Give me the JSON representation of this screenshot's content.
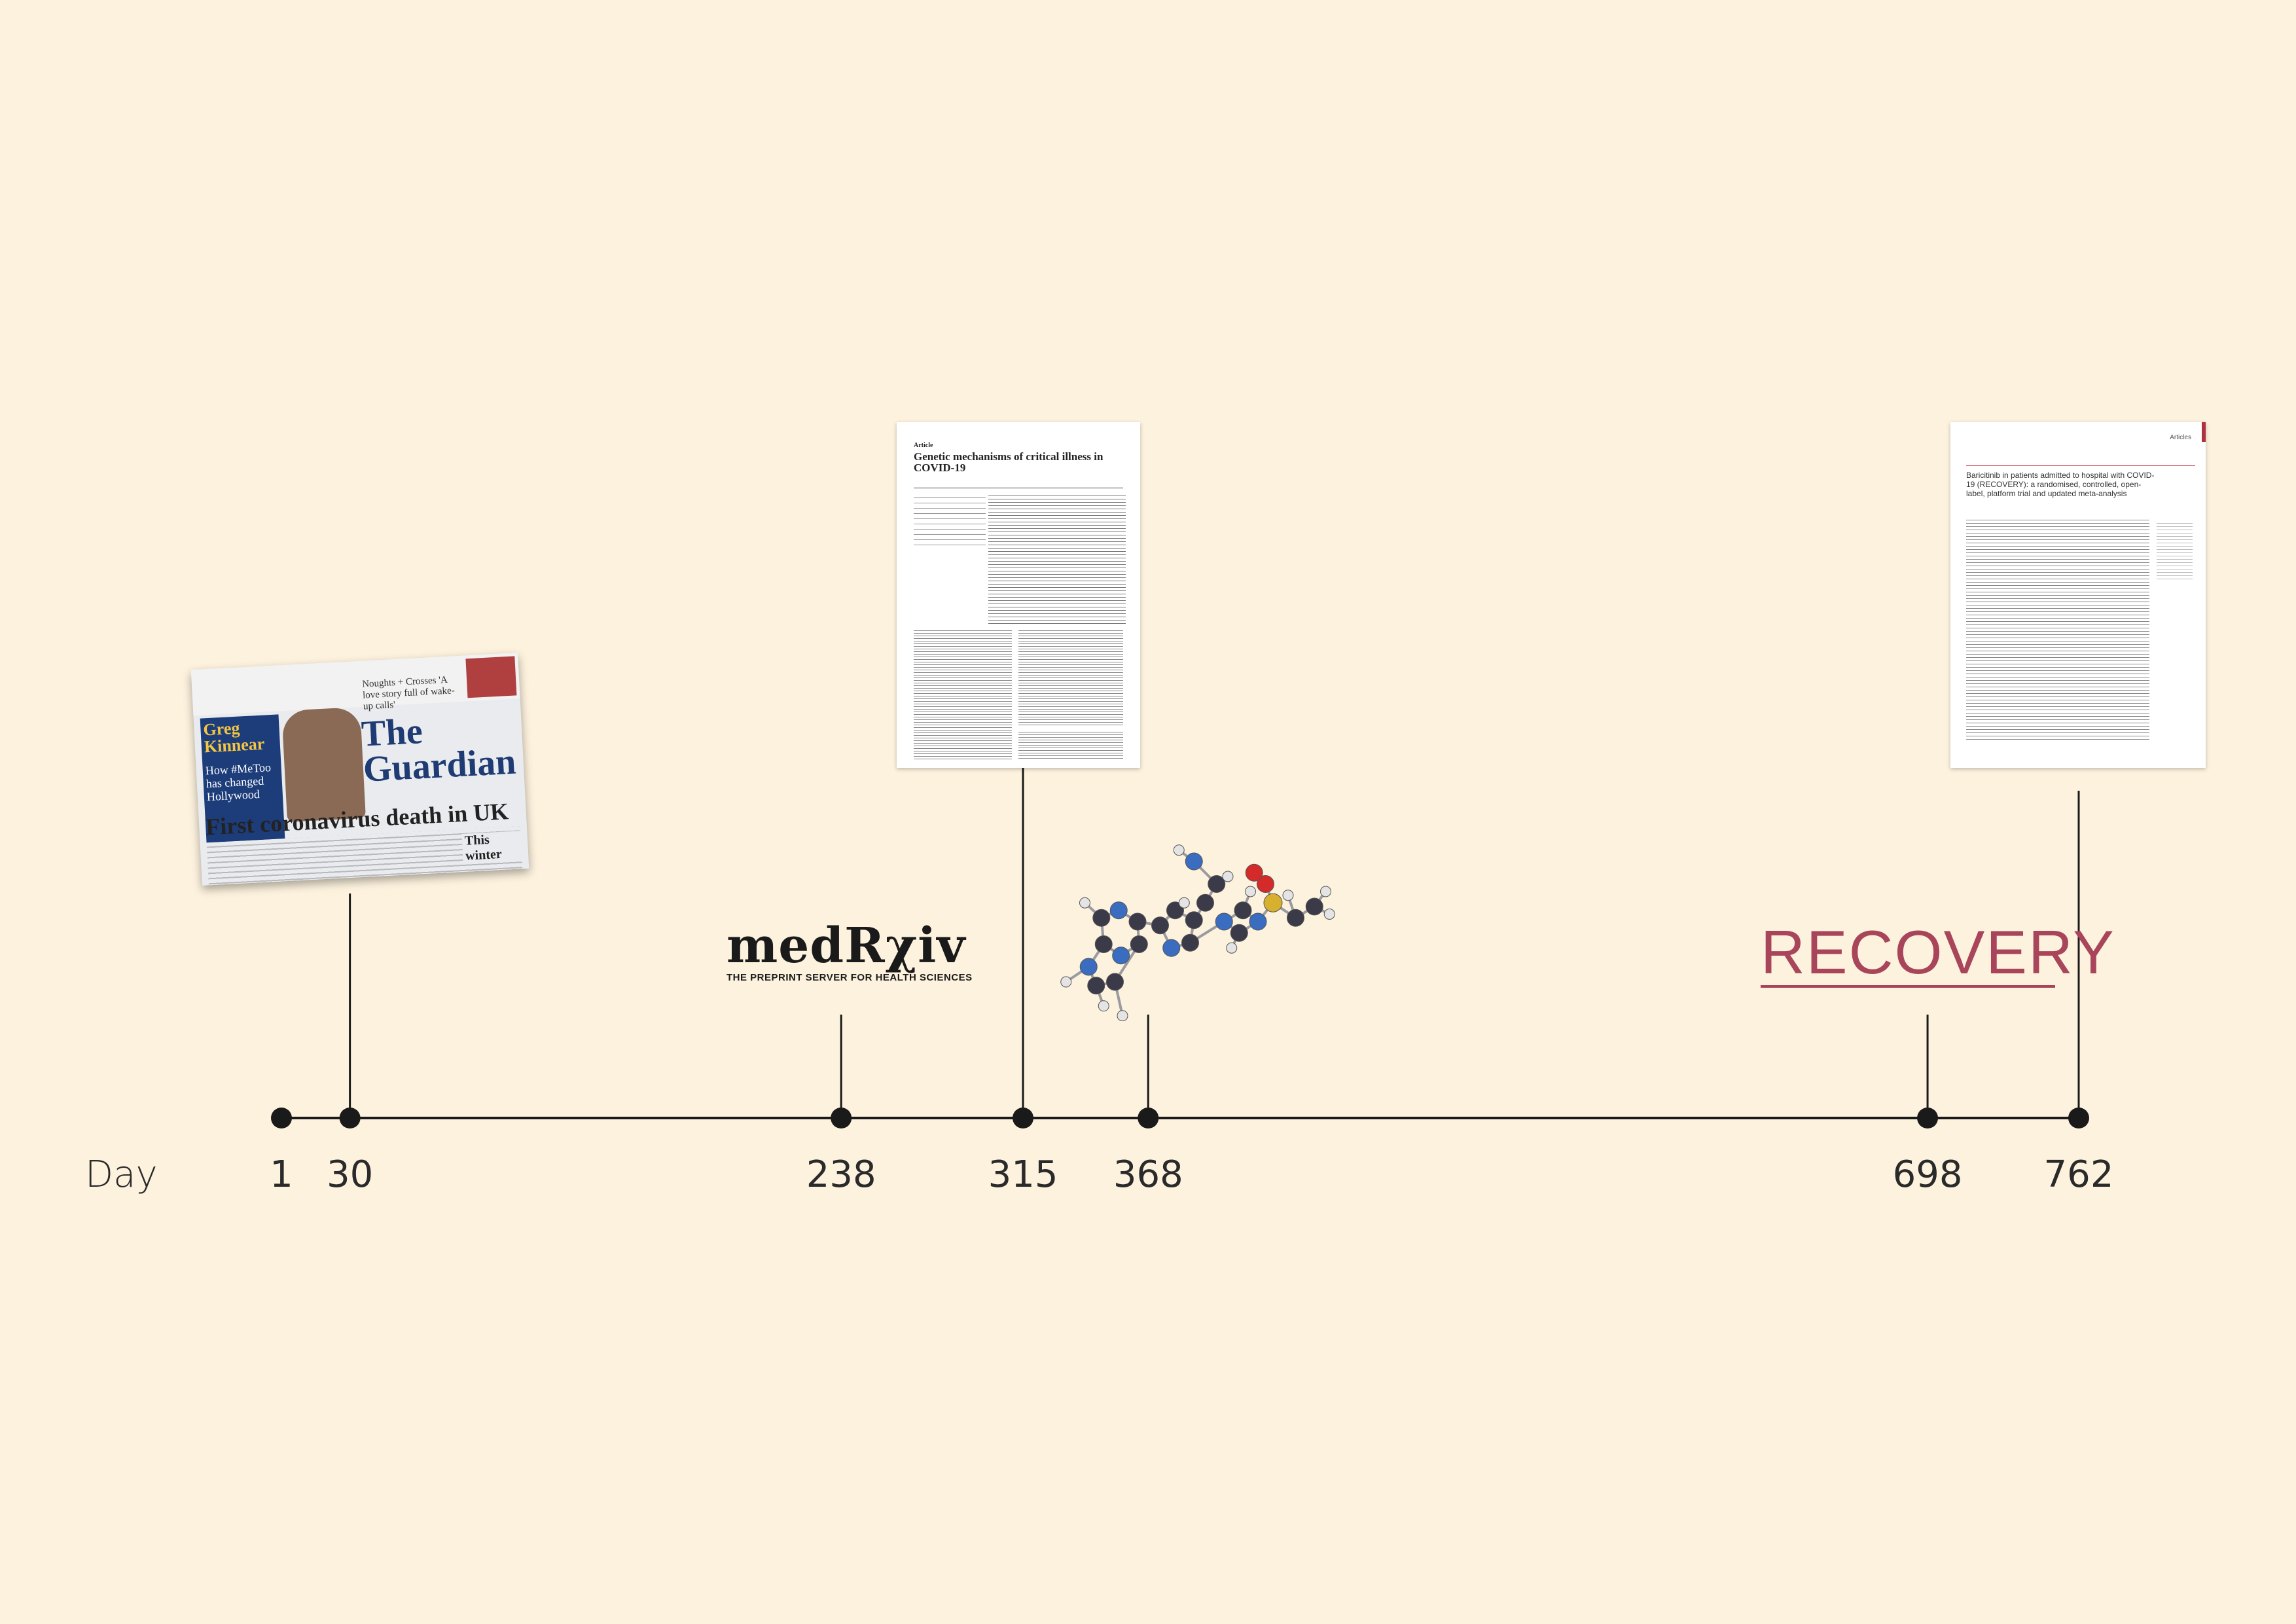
{
  "axis": {
    "label": "Day",
    "ticks": [
      {
        "value": 1,
        "label": "1"
      },
      {
        "value": 30,
        "label": "30"
      },
      {
        "value": 238,
        "label": "238"
      },
      {
        "value": 315,
        "label": "315"
      },
      {
        "value": 368,
        "label": "368"
      },
      {
        "value": 698,
        "label": "698"
      },
      {
        "value": 762,
        "label": "762"
      }
    ]
  },
  "events": {
    "guardian": {
      "day": 30,
      "masthead": "The Guardian",
      "headline": "First coronavirus death in UK",
      "promo_name": "Greg Kinnear",
      "promo_text": "How #MeToo has changed Hollywood",
      "kicker": "Noughts + Crosses 'A love story full of wake-up calls'",
      "teaser": "This winter"
    },
    "medrxiv": {
      "day": 238,
      "logo": "medRχiv",
      "tagline": "THE PREPRINT SERVER FOR HEALTH SCIENCES"
    },
    "nature_article": {
      "day": 315,
      "section": "Article",
      "title": "Genetic mechanisms of critical illness in COVID-19"
    },
    "molecule": {
      "day": 368,
      "icon": "baricitinib-molecule-icon"
    },
    "recovery": {
      "day": 698,
      "logo": "RECOVERY"
    },
    "lancet_article": {
      "day": 762,
      "section": "Articles",
      "title": "Baricitinib in patients admitted to hospital with COVID-19 (RECOVERY): a randomised, controlled, open-label, platform trial and updated meta-analysis"
    }
  },
  "colors": {
    "background": "#fdf2de",
    "axis": "#1a1a1a",
    "recovery": "#a8455a",
    "medrxiv_r": "#2d5a9a"
  }
}
